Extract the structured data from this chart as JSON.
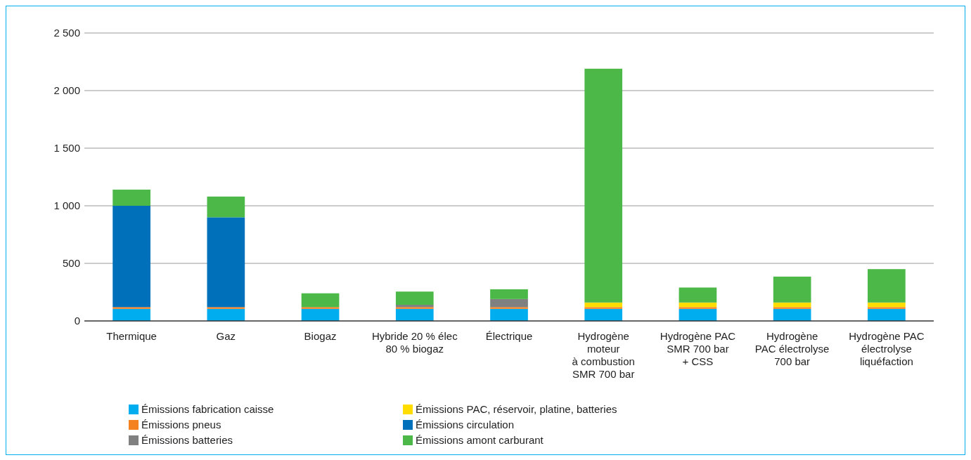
{
  "chart_data": {
    "type": "bar",
    "stacked": true,
    "categories": [
      "Thermique",
      "Gaz",
      "Biogaz",
      "Hybride 20 % élec\n80 % biogaz",
      "Électrique",
      "Hydrogène\nmoteur\nà combustion\nSMR 700 bar",
      "Hydrogène PAC\nSMR 700 bar\n+ CSS",
      "Hydrogène\nPAC électrolyse\n700 bar",
      "Hydrogène PAC\nélectrolyse\nliquéfaction"
    ],
    "series": [
      {
        "name": "Émissions fabrication caisse",
        "color": "#00adef",
        "values": [
          105,
          105,
          105,
          105,
          105,
          105,
          105,
          105,
          105
        ]
      },
      {
        "name": "Émissions pneus",
        "color": "#f58220",
        "values": [
          15,
          15,
          15,
          15,
          15,
          15,
          15,
          15,
          15
        ]
      },
      {
        "name": "Émissions batteries",
        "color": "#808080",
        "values": [
          null,
          null,
          null,
          20,
          70,
          null,
          null,
          null,
          null
        ]
      },
      {
        "name": "Émissions PAC, réservoir, platine, batteries",
        "color": "#ffdd00",
        "values": [
          null,
          null,
          null,
          null,
          null,
          40,
          40,
          40,
          40
        ]
      },
      {
        "name": "Émissions circulation",
        "color": "#0070bb",
        "values": [
          880,
          780,
          null,
          null,
          null,
          null,
          null,
          null,
          null
        ]
      },
      {
        "name": "Émissions amont carburant",
        "color": "#4cb848",
        "values": [
          140,
          180,
          120,
          115,
          85,
          2030,
          130,
          225,
          290
        ]
      }
    ],
    "ylim": [
      0,
      2500
    ],
    "yticks": [
      0,
      {
        "value": 500,
        "label": "500"
      },
      {
        "value": 1000,
        "label": "1 000"
      },
      {
        "value": 1500,
        "label": "1 500"
      },
      {
        "value": 2000,
        "label": "2 000"
      },
      {
        "value": 2500,
        "label": "2 500"
      }
    ],
    "grid": "y",
    "legend": "bottom"
  }
}
